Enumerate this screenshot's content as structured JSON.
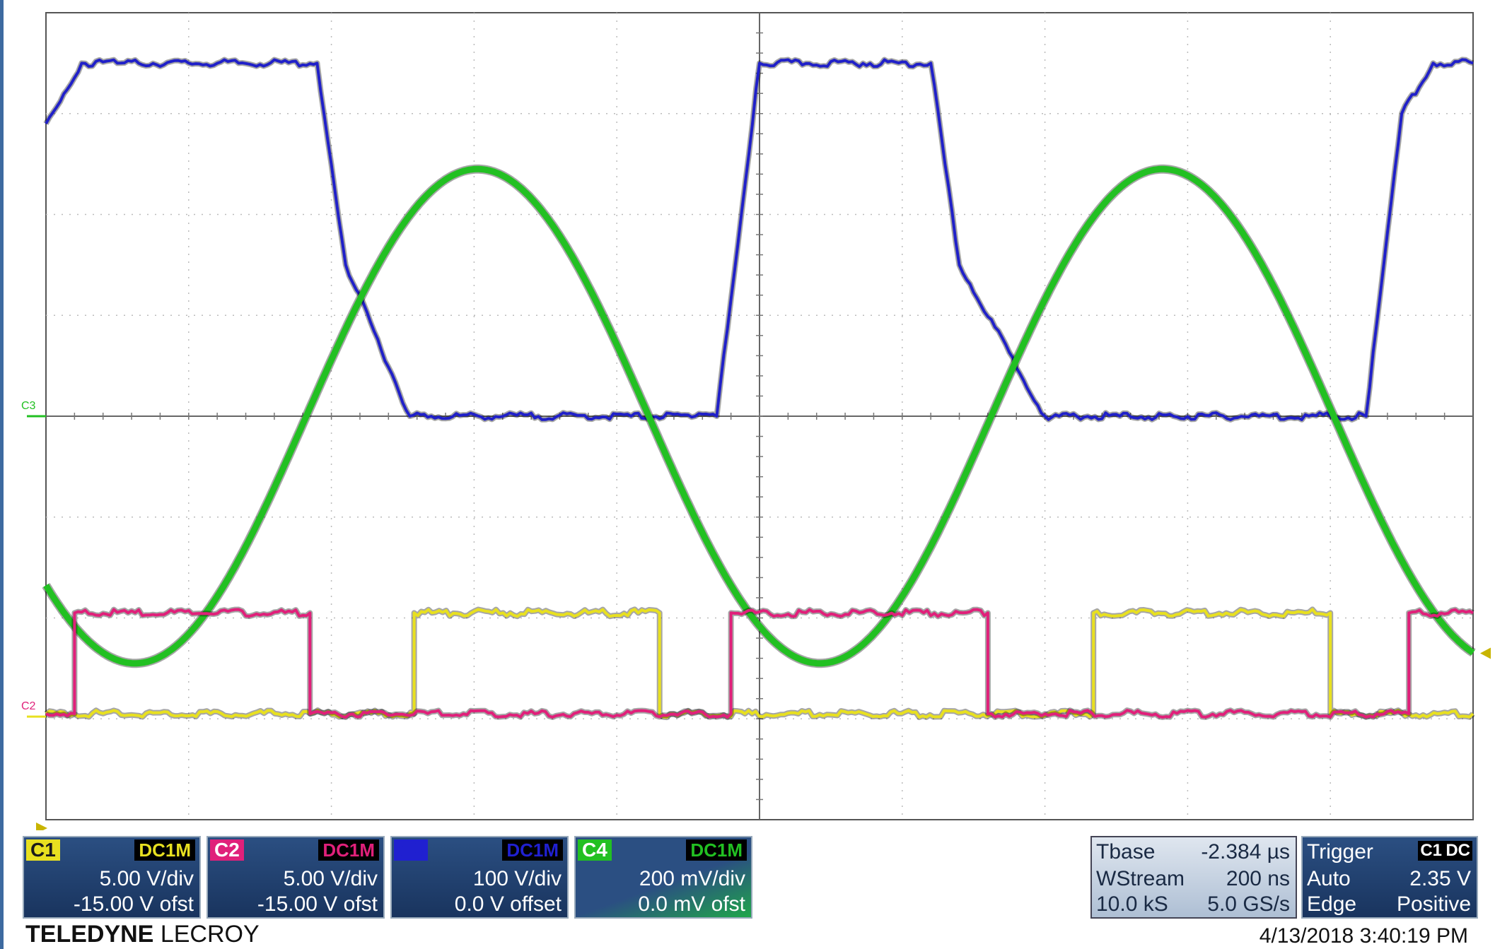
{
  "chart_data": {
    "type": "line",
    "grid": true,
    "xlim": [
      0,
      10
    ],
    "ylim": [
      -4,
      4
    ],
    "series": [
      {
        "name": "C3",
        "color": "#2020c8",
        "x": [
          0,
          0.25,
          0.5,
          1.9,
          2.1,
          2.55,
          2.7,
          4.55,
          4.7,
          5.0,
          6.2,
          6.4,
          7.0,
          7.1,
          7.9,
          9.25,
          9.5,
          9.72,
          10
        ],
        "y": [
          2.9,
          3.5,
          3.5,
          3.5,
          1.5,
          0.0,
          0.0,
          0.0,
          0.0,
          3.5,
          3.5,
          1.5,
          0.0,
          0.0,
          0.0,
          0.0,
          3.0,
          3.5,
          3.5
        ]
      },
      {
        "name": "C4",
        "color": "#22c022",
        "period": 4.8,
        "phase": 0.38,
        "center": 0.0,
        "amplitude": 2.45
      },
      {
        "name": "C1",
        "color": "#e8e020",
        "x": [
          0,
          2.58,
          2.58,
          4.3,
          4.3,
          7.34,
          7.34,
          9.0,
          9.0,
          10
        ],
        "y": [
          -2.95,
          -2.95,
          -1.95,
          -1.95,
          -2.95,
          -2.95,
          -1.95,
          -1.95,
          -2.95,
          -2.95
        ]
      },
      {
        "name": "C2",
        "color": "#e0207a",
        "x": [
          0,
          0.2,
          0.2,
          1.85,
          1.85,
          4.8,
          4.8,
          6.6,
          6.6,
          9.55,
          9.55,
          10
        ],
        "y": [
          -2.95,
          -2.95,
          -1.95,
          -1.95,
          -2.95,
          -2.95,
          -1.95,
          -1.95,
          -2.95,
          -2.95,
          -1.95,
          -1.95
        ]
      }
    ]
  },
  "screen": {
    "markers": {
      "c3": "C3",
      "c2": "C2"
    }
  },
  "channels": [
    {
      "id": "C1",
      "coupling": "DC1M",
      "scale": "5.00 V/div",
      "offset": "-15.00 V ofst",
      "color": "#e8e020"
    },
    {
      "id": "C2",
      "coupling": "DC1M",
      "scale": "5.00 V/div",
      "offset": "-15.00 V ofst",
      "color": "#e0207a"
    },
    {
      "id": "C3",
      "coupling": "DC1M",
      "scale": "100 V/div",
      "offset": "0.0 V offset",
      "color": "#2020d0"
    },
    {
      "id": "C4",
      "coupling": "DC1M",
      "scale": "200 mV/div",
      "offset": "0.0 mV ofst",
      "color": "#22c022"
    }
  ],
  "timebase": {
    "label": "Tbase",
    "delay": "-2.384 µs",
    "mode": "WStream",
    "div": "200 ns",
    "samples": "10.0 kS",
    "rate": "5.0 GS/s"
  },
  "trigger": {
    "label": "Trigger",
    "source": "C1",
    "coupling": "DC",
    "mode": "Auto",
    "level": "2.35 V",
    "type": "Edge",
    "slope": "Positive"
  },
  "brand": {
    "bold": "TELEDYNE",
    "light": "LECROY"
  },
  "timestamp": "4/13/2018 3:40:19 PM"
}
